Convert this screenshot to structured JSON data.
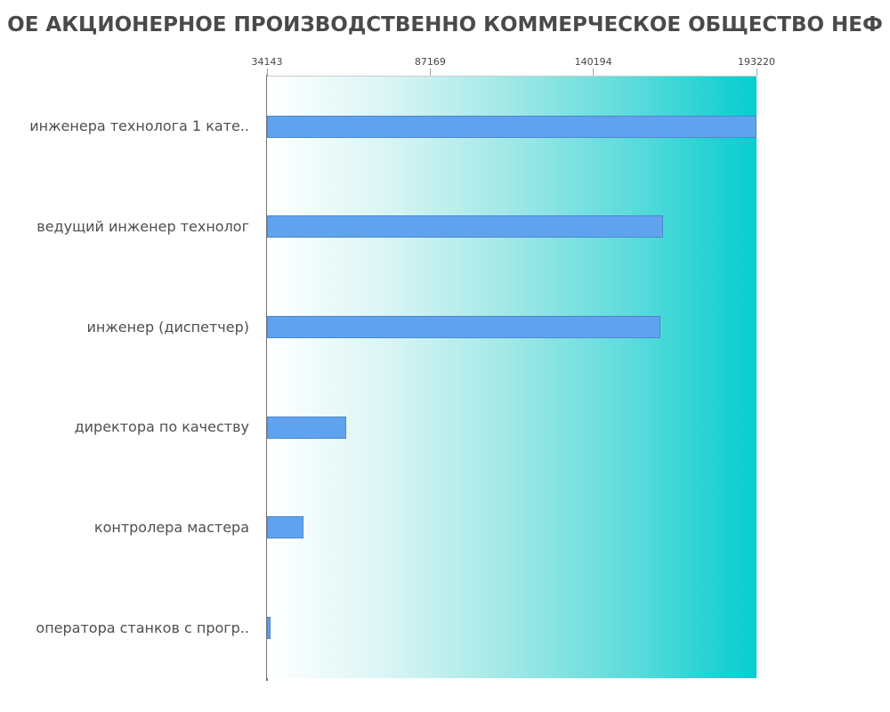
{
  "title": "ОЕ АКЦИОНЕРНОЕ ПРОИЗВОДСТВЕННО КОММЕРЧЕСКОЕ ОБЩЕСТВО НЕФ",
  "colors": {
    "bar_fill": "#5fa3ef",
    "bar_border": "#3a5c8c",
    "gradient_start": "#ffffff",
    "gradient_end": "#06cdd0",
    "axis_line": "#777777",
    "title_text": "#4a4a4a",
    "label_text": "#4f4f4f",
    "tick_text": "#474747"
  },
  "chart_data": {
    "type": "bar",
    "orientation": "horizontal",
    "title": "ОЕ АКЦИОНЕРНОЕ ПРОИЗВОДСТВЕННО КОММЕРЧЕСКОЕ ОБЩЕСТВО НЕФ",
    "categories": [
      "инженера технолога 1 кате..",
      "ведущий инженер технолог",
      "инженер (диспетчер)",
      "директора по качеству",
      "контролера мастера",
      "оператора станков с прогр.."
    ],
    "values": [
      193220,
      162900,
      161900,
      59800,
      46100,
      34143
    ],
    "x_ticks": [
      34143,
      87169,
      140194,
      193220
    ],
    "xlim": [
      34143,
      193220
    ],
    "xlabel": "",
    "ylabel": "",
    "grid": false,
    "legend": null,
    "bar_color": "#5fa3ef",
    "background": "white-to-turquoise horizontal gradient"
  }
}
